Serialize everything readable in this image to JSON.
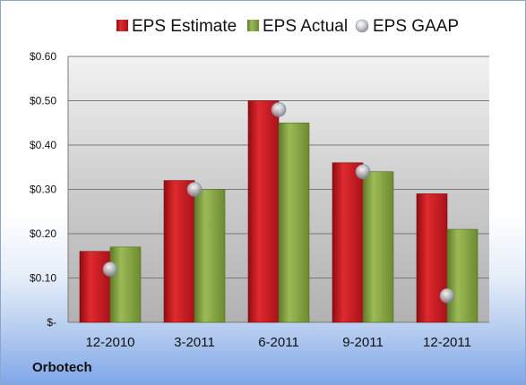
{
  "company": "Orbotech",
  "colors": {
    "estimate": "#c8141a",
    "actual": "#7b9b3a",
    "gaap": "#c0c4cc"
  },
  "chart_data": {
    "type": "bar",
    "categories": [
      "12-2010",
      "3-2011",
      "6-2011",
      "9-2011",
      "12-2011"
    ],
    "series": [
      {
        "name": "EPS Estimate",
        "kind": "bar",
        "values": [
          0.16,
          0.32,
          0.5,
          0.36,
          0.29
        ]
      },
      {
        "name": "EPS Actual",
        "kind": "bar",
        "values": [
          0.17,
          0.3,
          0.45,
          0.34,
          0.21
        ]
      },
      {
        "name": "EPS GAAP",
        "kind": "marker",
        "values": [
          0.12,
          0.3,
          0.48,
          0.34,
          0.06
        ]
      }
    ],
    "yticks": [
      "$-",
      "$0.10",
      "$0.20",
      "$0.30",
      "$0.40",
      "$0.50",
      "$0.60"
    ],
    "ylim": [
      0,
      0.6
    ],
    "grid": true,
    "legend": "top"
  }
}
